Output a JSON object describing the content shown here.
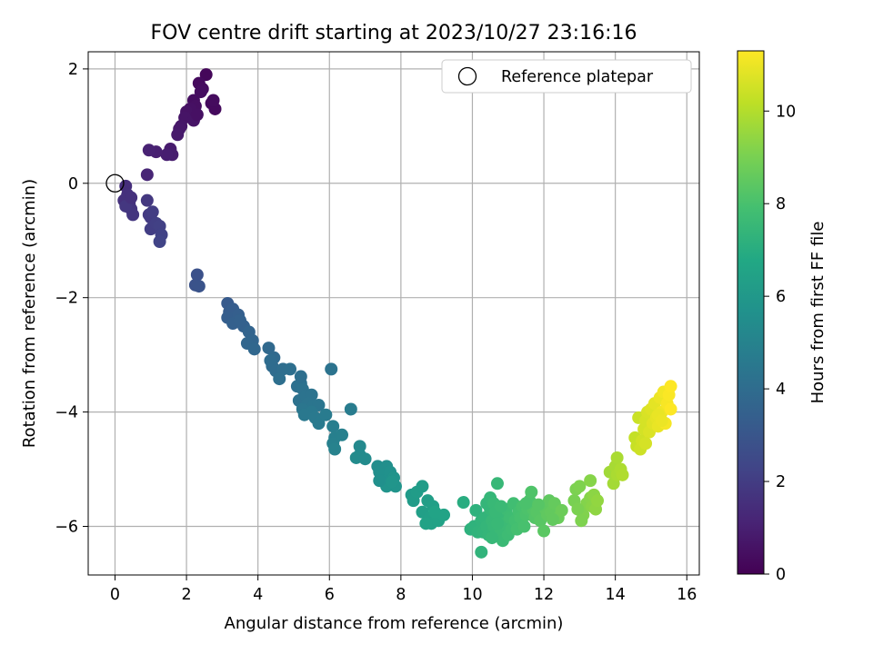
{
  "chart_data": {
    "type": "scatter",
    "title": "FOV centre drift starting at 2023/10/27 23:16:16",
    "xlabel": "Angular distance from reference (arcmin)",
    "ylabel": "Rotation from reference (arcmin)",
    "xlim": [
      -0.75,
      16.35
    ],
    "ylim": [
      -6.85,
      2.3
    ],
    "xticks": [
      0,
      2,
      4,
      6,
      8,
      10,
      12,
      14,
      16
    ],
    "yticks": [
      -6,
      -4,
      -2,
      0,
      2
    ],
    "grid": true,
    "legend": {
      "position": "top-right",
      "entries": [
        "Reference platepar"
      ]
    },
    "reference_point": {
      "x": 0,
      "y": 0
    },
    "colorbar": {
      "label": "Hours from first FF file",
      "range": [
        0,
        11.3
      ],
      "ticks": [
        0,
        2,
        4,
        6,
        8,
        10
      ],
      "colormap": "viridis"
    },
    "points": [
      [
        2.55,
        1.9,
        0.2
      ],
      [
        2.35,
        1.75,
        0.3
      ],
      [
        2.45,
        1.65,
        0.35
      ],
      [
        2.2,
        1.45,
        0.4
      ],
      [
        2.25,
        1.35,
        0.45
      ],
      [
        2.1,
        1.3,
        0.5
      ],
      [
        2.0,
        1.25,
        0.55
      ],
      [
        1.95,
        1.15,
        0.6
      ],
      [
        2.2,
        1.1,
        0.6
      ],
      [
        1.85,
        1.0,
        0.7
      ],
      [
        1.8,
        0.95,
        0.75
      ],
      [
        1.75,
        0.85,
        0.8
      ],
      [
        1.55,
        0.6,
        0.85
      ],
      [
        1.6,
        0.5,
        0.9
      ],
      [
        1.45,
        0.5,
        0.95
      ],
      [
        1.15,
        0.55,
        1.0
      ],
      [
        0.95,
        0.58,
        1.05
      ],
      [
        2.7,
        1.4,
        0.3
      ],
      [
        2.8,
        1.3,
        0.3
      ],
      [
        2.75,
        1.45,
        0.35
      ],
      [
        2.4,
        1.6,
        0.4
      ],
      [
        2.3,
        1.2,
        0.5
      ],
      [
        0.9,
        0.15,
        1.2
      ],
      [
        0.3,
        -0.05,
        1.5
      ],
      [
        0.35,
        -0.2,
        1.55
      ],
      [
        0.25,
        -0.3,
        1.6
      ],
      [
        0.4,
        -0.35,
        1.65
      ],
      [
        0.45,
        -0.45,
        1.7
      ],
      [
        0.5,
        -0.55,
        1.75
      ],
      [
        0.3,
        -0.4,
        1.8
      ],
      [
        0.9,
        -0.3,
        1.85
      ],
      [
        0.95,
        -0.55,
        1.9
      ],
      [
        1.0,
        -0.6,
        1.95
      ],
      [
        1.05,
        -0.5,
        2.0
      ],
      [
        1.0,
        -0.8,
        2.05
      ],
      [
        1.15,
        -0.7,
        2.1
      ],
      [
        1.25,
        -0.75,
        2.15
      ],
      [
        1.3,
        -0.9,
        2.2
      ],
      [
        1.25,
        -1.02,
        2.25
      ],
      [
        0.45,
        -0.25,
        1.6
      ],
      [
        2.3,
        -1.6,
        2.8
      ],
      [
        2.25,
        -1.78,
        2.85
      ],
      [
        2.35,
        -1.8,
        2.9
      ],
      [
        3.15,
        -2.1,
        3.2
      ],
      [
        3.2,
        -2.25,
        3.25
      ],
      [
        3.3,
        -2.2,
        3.3
      ],
      [
        3.15,
        -2.35,
        3.35
      ],
      [
        3.45,
        -2.3,
        3.4
      ],
      [
        3.3,
        -2.45,
        3.45
      ],
      [
        3.6,
        -2.5,
        3.5
      ],
      [
        3.5,
        -2.4,
        3.5
      ],
      [
        3.75,
        -2.6,
        3.6
      ],
      [
        3.85,
        -2.75,
        3.65
      ],
      [
        3.7,
        -2.8,
        3.7
      ],
      [
        3.9,
        -2.9,
        3.75
      ],
      [
        4.3,
        -2.88,
        3.85
      ],
      [
        4.45,
        -3.05,
        3.9
      ],
      [
        4.4,
        -3.2,
        3.95
      ],
      [
        4.35,
        -3.1,
        4.0
      ],
      [
        4.5,
        -3.28,
        4.0
      ],
      [
        4.7,
        -3.25,
        4.05
      ],
      [
        4.9,
        -3.25,
        4.1
      ],
      [
        4.6,
        -3.42,
        4.1
      ],
      [
        5.1,
        -3.55,
        4.15
      ],
      [
        5.2,
        -3.5,
        4.2
      ],
      [
        5.25,
        -3.6,
        4.25
      ],
      [
        5.15,
        -3.8,
        4.25
      ],
      [
        5.35,
        -3.72,
        4.3
      ],
      [
        5.5,
        -3.7,
        4.3
      ],
      [
        5.4,
        -3.85,
        4.35
      ],
      [
        5.55,
        -3.9,
        4.4
      ],
      [
        5.7,
        -3.88,
        4.4
      ],
      [
        5.25,
        -3.95,
        4.45
      ],
      [
        5.5,
        -4.0,
        4.5
      ],
      [
        5.3,
        -4.05,
        4.5
      ],
      [
        5.6,
        -4.1,
        4.55
      ],
      [
        5.7,
        -4.2,
        4.6
      ],
      [
        6.05,
        -3.25,
        4.3
      ],
      [
        5.2,
        -3.38,
        4.1
      ],
      [
        5.9,
        -4.05,
        4.65
      ],
      [
        6.6,
        -3.95,
        4.7
      ],
      [
        6.1,
        -4.25,
        4.8
      ],
      [
        6.15,
        -4.45,
        4.85
      ],
      [
        6.1,
        -4.55,
        4.9
      ],
      [
        6.15,
        -4.65,
        4.95
      ],
      [
        6.35,
        -4.4,
        4.9
      ],
      [
        6.85,
        -4.6,
        5.3
      ],
      [
        6.85,
        -4.75,
        5.35
      ],
      [
        6.75,
        -4.8,
        5.4
      ],
      [
        7.0,
        -4.82,
        5.4
      ],
      [
        7.35,
        -4.95,
        5.5
      ],
      [
        7.6,
        -4.95,
        5.55
      ],
      [
        7.4,
        -5.05,
        5.55
      ],
      [
        7.5,
        -5.1,
        5.6
      ],
      [
        7.7,
        -5.05,
        5.65
      ],
      [
        7.5,
        -5.2,
        5.65
      ],
      [
        7.65,
        -5.25,
        5.7
      ],
      [
        7.8,
        -5.15,
        5.75
      ],
      [
        7.85,
        -5.3,
        5.8
      ],
      [
        7.6,
        -5.3,
        5.8
      ],
      [
        7.75,
        -5.22,
        5.85
      ],
      [
        7.4,
        -5.2,
        5.6
      ],
      [
        8.3,
        -5.45,
        6.1
      ],
      [
        8.35,
        -5.55,
        6.15
      ],
      [
        8.45,
        -5.4,
        6.2
      ],
      [
        8.6,
        -5.3,
        6.2
      ],
      [
        8.75,
        -5.55,
        6.3
      ],
      [
        8.9,
        -5.65,
        6.35
      ],
      [
        8.6,
        -5.75,
        6.35
      ],
      [
        8.8,
        -5.85,
        6.4
      ],
      [
        9.0,
        -5.8,
        6.45
      ],
      [
        8.85,
        -5.95,
        6.45
      ],
      [
        8.7,
        -5.95,
        6.5
      ],
      [
        9.05,
        -5.9,
        6.5
      ],
      [
        9.2,
        -5.8,
        6.55
      ],
      [
        8.95,
        -5.75,
        6.55
      ],
      [
        9.75,
        -5.58,
        7.0
      ],
      [
        9.95,
        -6.05,
        7.2
      ],
      [
        10.05,
        -6.0,
        7.25
      ],
      [
        10.15,
        -6.1,
        7.3
      ],
      [
        10.25,
        -5.9,
        7.3
      ],
      [
        10.3,
        -6.1,
        7.35
      ],
      [
        10.1,
        -5.72,
        7.2
      ],
      [
        10.35,
        -5.85,
        7.35
      ],
      [
        10.4,
        -6.0,
        7.4
      ],
      [
        10.45,
        -6.15,
        7.4
      ],
      [
        10.5,
        -5.7,
        7.45
      ],
      [
        10.55,
        -5.9,
        7.5
      ],
      [
        10.6,
        -6.0,
        7.5
      ],
      [
        10.4,
        -5.6,
        7.4
      ],
      [
        10.5,
        -5.5,
        7.45
      ],
      [
        10.7,
        -5.25,
        7.5
      ],
      [
        10.75,
        -5.8,
        7.55
      ],
      [
        10.8,
        -6.1,
        7.6
      ],
      [
        10.85,
        -6.25,
        7.6
      ],
      [
        10.9,
        -5.95,
        7.65
      ],
      [
        10.95,
        -5.7,
        7.7
      ],
      [
        11.0,
        -6.15,
        7.7
      ],
      [
        11.05,
        -5.85,
        7.75
      ],
      [
        11.1,
        -6.05,
        7.75
      ],
      [
        11.15,
        -5.6,
        7.8
      ],
      [
        10.6,
        -5.6,
        7.55
      ],
      [
        10.65,
        -5.75,
        7.55
      ],
      [
        10.25,
        -6.45,
        7.3
      ],
      [
        10.55,
        -6.2,
        7.5
      ],
      [
        10.7,
        -5.95,
        7.55
      ],
      [
        10.8,
        -5.65,
        7.6
      ],
      [
        11.2,
        -5.9,
        7.85
      ],
      [
        11.25,
        -6.05,
        7.9
      ],
      [
        11.3,
        -5.75,
        7.9
      ],
      [
        11.35,
        -5.85,
        7.95
      ],
      [
        11.4,
        -5.65,
        8.0
      ],
      [
        11.45,
        -6.0,
        8.0
      ],
      [
        11.5,
        -5.8,
        8.05
      ],
      [
        11.55,
        -5.7,
        8.1
      ],
      [
        11.6,
        -5.55,
        8.1
      ],
      [
        11.7,
        -5.7,
        8.2
      ],
      [
        11.75,
        -5.85,
        8.25
      ],
      [
        11.8,
        -5.75,
        8.3
      ],
      [
        11.9,
        -5.9,
        8.35
      ],
      [
        12.0,
        -6.08,
        8.4
      ],
      [
        12.05,
        -5.7,
        8.45
      ],
      [
        12.1,
        -5.8,
        8.5
      ],
      [
        12.15,
        -5.55,
        8.5
      ],
      [
        12.2,
        -5.75,
        8.55
      ],
      [
        12.3,
        -5.6,
        8.6
      ],
      [
        12.4,
        -5.85,
        8.7
      ],
      [
        12.5,
        -5.72,
        8.75
      ],
      [
        11.65,
        -5.4,
        8.15
      ],
      [
        11.5,
        -5.6,
        8.05
      ],
      [
        11.85,
        -5.62,
        8.3
      ],
      [
        12.25,
        -5.88,
        8.55
      ],
      [
        12.85,
        -5.55,
        9.0
      ],
      [
        12.9,
        -5.35,
        9.05
      ],
      [
        13.0,
        -5.3,
        9.1
      ],
      [
        13.1,
        -5.8,
        9.15
      ],
      [
        13.2,
        -5.6,
        9.2
      ],
      [
        13.3,
        -5.5,
        9.25
      ],
      [
        13.3,
        -5.2,
        9.25
      ],
      [
        13.35,
        -5.65,
        9.3
      ],
      [
        13.4,
        -5.45,
        9.35
      ],
      [
        13.45,
        -5.7,
        9.4
      ],
      [
        13.5,
        -5.55,
        9.45
      ],
      [
        12.95,
        -5.7,
        9.05
      ],
      [
        13.05,
        -5.9,
        9.1
      ],
      [
        13.85,
        -5.05,
        9.7
      ],
      [
        13.95,
        -5.25,
        9.75
      ],
      [
        14.0,
        -4.95,
        9.8
      ],
      [
        14.05,
        -5.1,
        9.85
      ],
      [
        14.15,
        -5.0,
        9.9
      ],
      [
        14.05,
        -4.8,
        9.85
      ],
      [
        14.2,
        -5.1,
        9.95
      ],
      [
        14.55,
        -4.45,
        10.3
      ],
      [
        14.6,
        -4.6,
        10.35
      ],
      [
        14.65,
        -4.1,
        10.4
      ],
      [
        14.7,
        -4.65,
        10.45
      ],
      [
        14.75,
        -4.5,
        10.5
      ],
      [
        14.8,
        -4.3,
        10.55
      ],
      [
        14.85,
        -4.15,
        10.6
      ],
      [
        14.9,
        -4.0,
        10.65
      ],
      [
        14.95,
        -4.35,
        10.7
      ],
      [
        15.0,
        -3.95,
        10.75
      ],
      [
        15.05,
        -4.2,
        10.8
      ],
      [
        15.1,
        -3.85,
        10.85
      ],
      [
        15.15,
        -4.1,
        10.9
      ],
      [
        15.2,
        -4.25,
        10.95
      ],
      [
        15.25,
        -3.75,
        11.0
      ],
      [
        15.3,
        -4.0,
        11.05
      ],
      [
        15.35,
        -3.65,
        11.1
      ],
      [
        15.4,
        -4.2,
        11.15
      ],
      [
        15.45,
        -3.85,
        11.2
      ],
      [
        15.5,
        -3.7,
        11.25
      ],
      [
        15.55,
        -3.95,
        11.3
      ],
      [
        15.55,
        -3.55,
        11.3
      ],
      [
        14.85,
        -4.55,
        10.6
      ],
      [
        15.2,
        -4.05,
        10.95
      ],
      [
        15.3,
        -4.15,
        11.0
      ]
    ]
  }
}
